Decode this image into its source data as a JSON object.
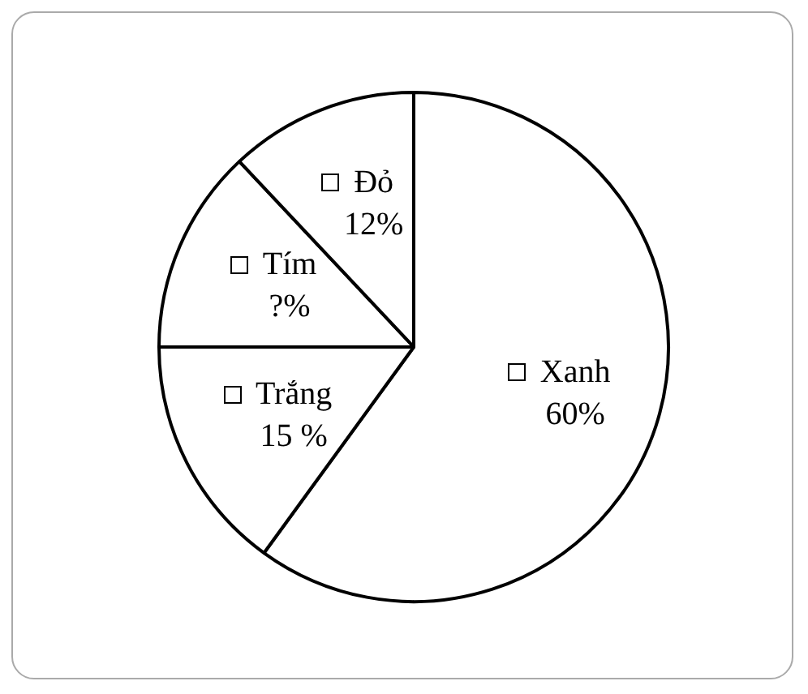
{
  "chart_data": {
    "type": "pie",
    "categories": [
      "Xanh",
      "Trắng",
      "Tím",
      "Đỏ"
    ],
    "values": [
      60,
      15,
      13,
      12
    ],
    "colors": [
      "#ffffff",
      "#ffffff",
      "#ffffff",
      "#ffffff"
    ],
    "value_labels": [
      "60%",
      "15 %",
      "?%",
      "12%"
    ],
    "legend": "center"
  }
}
